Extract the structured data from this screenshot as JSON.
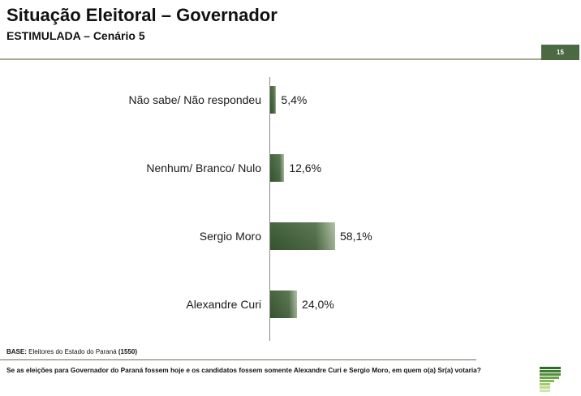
{
  "header": {
    "title": "Situação Eleitoral – Governador",
    "subtitle": "ESTIMULADA – Cenário 5",
    "page_number": "15"
  },
  "chart_data": {
    "type": "bar",
    "orientation": "horizontal",
    "categories": [
      "Não sabe/ Não respondeu",
      "Nenhum/ Branco/ Nulo",
      "Sergio Moro",
      "Alexandre Curi"
    ],
    "values": [
      5.4,
      12.6,
      58.1,
      24.0
    ],
    "value_labels": [
      "5,4%",
      "12,6%",
      "58,1%",
      "24,0%"
    ],
    "xlim": [
      0,
      100
    ],
    "grid": false,
    "legend": "none"
  },
  "footer": {
    "base_label": "BASE:",
    "base_text": "Eleitores do Estado do Paraná",
    "base_count": "(1550)",
    "question": "Se as eleições para Governador do Paraná fossem hoje e os candidatos fossem somente Alexandre Curi e Sergio Moro, em quem o(a) Sr(a) votaria?"
  },
  "logo": {
    "icon": "logo-stripes-icon"
  },
  "colors": {
    "bar_dark": "#3b5b33",
    "bar_mid": "#52714a",
    "bar_light": "#aebfa1",
    "accent": "#4b6a43",
    "rule": "#a3ab95"
  }
}
